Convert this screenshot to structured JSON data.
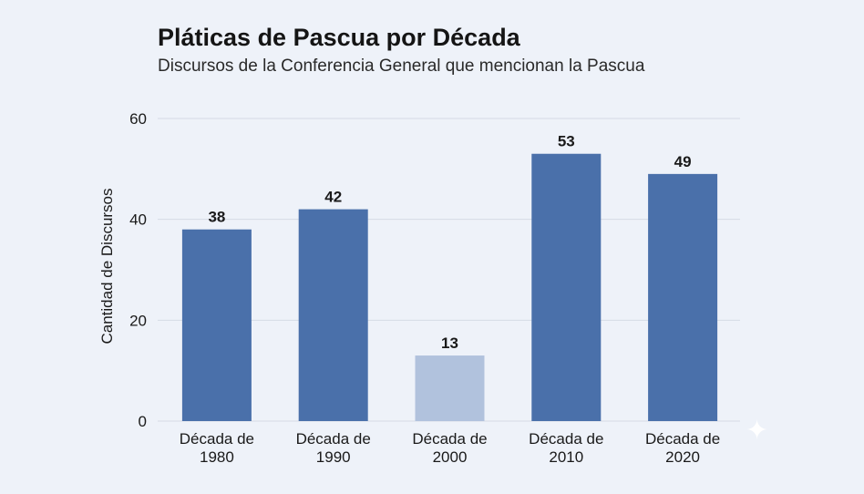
{
  "chart_data": {
    "type": "bar",
    "title": "Pláticas de Pascua por Década",
    "subtitle": "Discursos de la Conferencia General que mencionan la Pascua",
    "ylabel": "Cantidad de Discursos",
    "xlabel": "",
    "categories": [
      [
        "Década de",
        "1980"
      ],
      [
        "Década de",
        "1990"
      ],
      [
        "Década de",
        "2000"
      ],
      [
        "Década de",
        "2010"
      ],
      [
        "Década de",
        "2020"
      ]
    ],
    "values": [
      38,
      42,
      13,
      53,
      49
    ],
    "ylim": [
      0,
      60
    ],
    "yticks": [
      "0",
      "20",
      "40",
      "60"
    ],
    "grid": true,
    "colors": {
      "bar": "#4a70aa",
      "bar_highlight": "#b1c2dd",
      "grid": "#d5dbe5",
      "text": "#1a1a1a"
    },
    "highlight_index": 2
  },
  "decor": {
    "icon": "sparkle-icon"
  }
}
